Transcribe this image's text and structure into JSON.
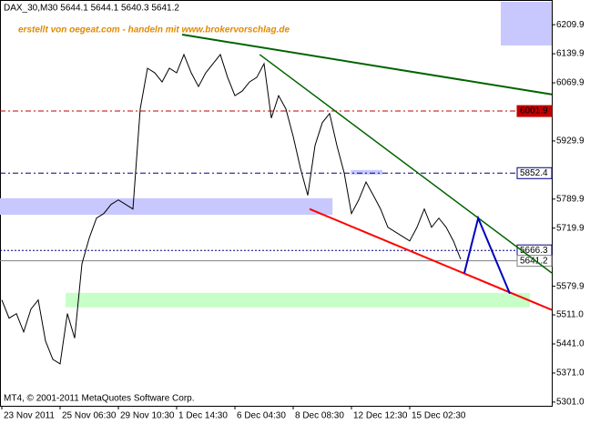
{
  "chart_data": {
    "type": "line",
    "title": "DAX_30,M30  5644.1 5644.1 5640.3 5641.2",
    "subtitle": "erstellt von oegeat.com - handeln mit www.brokervorschlag.de",
    "footer": "MT4, © 2001-2011 MetaQuotes Software Corp.",
    "categories": [
      "23 Nov 2011",
      null,
      null,
      null,
      null,
      null,
      null,
      null,
      "25 Nov 06:30",
      null,
      null,
      null,
      null,
      null,
      null,
      null,
      "29 Nov 10:30",
      null,
      null,
      null,
      null,
      null,
      null,
      null,
      "1 Dec 14:30",
      null,
      null,
      null,
      null,
      null,
      null,
      null,
      "6 Dec 04:30",
      null,
      null,
      null,
      null,
      null,
      null,
      null,
      "8 Dec 08:30",
      null,
      null,
      null,
      null,
      null,
      null,
      null,
      "12 Dec 12:30",
      null,
      null,
      null,
      null,
      null,
      null,
      null,
      "15 Dec 02:30",
      null,
      null,
      null,
      null,
      null,
      null,
      null
    ],
    "series": [
      {
        "name": "DAX_30",
        "color": "#000000",
        "values": [
          5547,
          5503,
          5514,
          5470,
          5525,
          5547,
          5448,
          5404,
          5393,
          5514,
          5455,
          5634,
          5696,
          5744,
          5755,
          5777,
          5788,
          5777,
          5766,
          6007,
          6105,
          6094,
          6072,
          6105,
          6094,
          6138,
          6094,
          6061,
          6094,
          6116,
          6138,
          6083,
          6039,
          6050,
          6072,
          6083,
          6116,
          5985,
          6039,
          6007,
          5941,
          5864,
          5799,
          5919,
          5974,
          5996,
          5919,
          5853,
          5755,
          5788,
          5831,
          5799,
          5766,
          5722,
          5711,
          5700,
          5689,
          5722,
          5766,
          5722,
          5744,
          5722,
          5689,
          5645
        ]
      }
    ],
    "xlim": [
      -0.25,
      75.5
    ],
    "ylim": [
      5292,
      6265
    ],
    "yticks": [
      6209.9,
      6139.9,
      6069.9,
      5929.9,
      5789.9,
      5719.9,
      5579.9,
      {
        "value": 5511,
        "label": "5511.0"
      },
      {
        "value": 5441,
        "label": "5441.0"
      },
      {
        "value": 5371,
        "label": "5371.0"
      },
      {
        "value": 5301,
        "label": "5301.0"
      }
    ],
    "levels": [
      {
        "value": 6001.9,
        "color": "#c00000",
        "style": "dashdot",
        "label_bg": "#c00000",
        "label_color": "#ffffff"
      },
      {
        "value": 5852.4,
        "color": "#000080",
        "style": "dashdot",
        "label_bg": "#ffffff",
        "label_color": "#000000"
      },
      {
        "value": 5666.3,
        "color": "#000080",
        "style": "dotted",
        "label_bg": "#ffffff",
        "label_color": "#000000"
      },
      {
        "value": 5641.2,
        "color": "#808080",
        "style": "solid",
        "label_bg": "#ffffff",
        "label_color": "#000000"
      }
    ],
    "zones": [
      {
        "x": [
          -0.25,
          45.4
        ],
        "y": [
          5752,
          5792
        ],
        "color": "#c8c8ff"
      },
      {
        "x": [
          47.9,
          52.25
        ],
        "y": [
          5849,
          5860
        ],
        "color": "#c8c8ff"
      },
      {
        "x": [
          68.5,
          75.5
        ],
        "y": [
          6160,
          6265
        ],
        "color": "#c8c8ff"
      },
      {
        "x": [
          8.75,
          72.5
        ],
        "y": [
          5529,
          5564
        ],
        "color": "#c8ffc8"
      }
    ],
    "trendlines": [
      {
        "x": [
          24.75,
          75.5
        ],
        "y": [
          6186,
          6042
        ],
        "color": "#006400",
        "width": 2
      },
      {
        "x": [
          35.4,
          75.5
        ],
        "y": [
          6138,
          5612
        ],
        "color": "#006400",
        "width": 1.5
      },
      {
        "x": [
          42.25,
          75.5
        ],
        "y": [
          5766,
          5523
        ],
        "color": "#ff0000",
        "width": 2
      },
      {
        "x": [
          63.5,
          65.4,
          69.75
        ],
        "y": [
          5612,
          5744,
          5562
        ],
        "color": "#0000c0",
        "width": 2
      }
    ]
  }
}
